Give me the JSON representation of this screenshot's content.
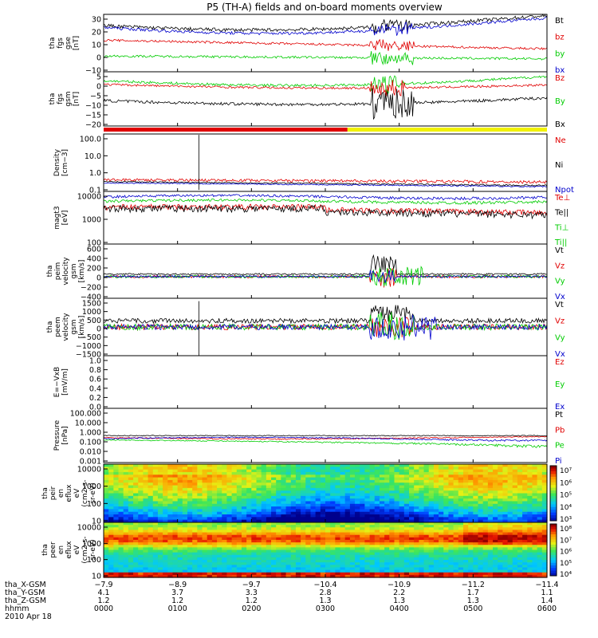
{
  "title": "P5 (TH-A) fields and on-board moments overview",
  "colors": {
    "black": "#000000",
    "red": "#e00000",
    "green": "#00cc00",
    "blue": "#0000cc",
    "yellow": "#f2f200"
  },
  "chart_data": {
    "type": "line",
    "x_ticks": [
      "0000",
      "0100",
      "0200",
      "0300",
      "0400",
      "0500",
      "0600"
    ],
    "panels": [
      {
        "id": "fgs-gse",
        "ylabel": [
          "tha",
          "fgs",
          "gse",
          "[nT]"
        ],
        "ylim": [
          -10,
          30
        ],
        "yticks": [
          "30",
          "20",
          "10",
          "0",
          "−10"
        ],
        "legend": [
          {
            "text": "Bt",
            "color": "black"
          },
          {
            "text": "bz",
            "color": "red"
          },
          {
            "text": "by",
            "color": "green"
          },
          {
            "text": "bx",
            "color": "blue"
          }
        ]
      },
      {
        "id": "fgs-gsm",
        "ylabel": [
          "tha",
          "fgs",
          "gsm",
          "[nT]"
        ],
        "ylim": [
          -22,
          8
        ],
        "yticks": [
          "5",
          "0",
          "−5",
          "−10",
          "−15",
          "−20"
        ],
        "legend": [
          {
            "text": "Bz",
            "color": "red"
          },
          {
            "text": "By",
            "color": "green"
          },
          {
            "text": "Bx",
            "color": "black"
          }
        ]
      },
      {
        "id": "density",
        "ylabel": [
          "Density",
          "[cm−3]"
        ],
        "ylim": [
          0.1,
          100
        ],
        "yticks": [
          "100.0",
          "10.0",
          "1.0",
          "0.1"
        ],
        "legend": [
          {
            "text": "Ne",
            "color": "red"
          },
          {
            "text": "Ni",
            "color": "black"
          },
          {
            "text": "Npot",
            "color": "blue"
          }
        ]
      },
      {
        "id": "temperature",
        "ylabel": [
          "magt3",
          "[eV]"
        ],
        "ylim": [
          100,
          10000
        ],
        "yticks": [
          "10000",
          "1000",
          "100"
        ],
        "legend": [
          {
            "text": "Te⊥",
            "color": "red"
          },
          {
            "text": "Te||",
            "color": "black"
          },
          {
            "text": "Ti⊥",
            "color": "green"
          },
          {
            "text": "Ti||",
            "color": "green"
          }
        ]
      },
      {
        "id": "peim-velocity",
        "ylabel": [
          "tha",
          "peim",
          "velocity",
          "gsm",
          "[km/s]"
        ],
        "ylim": [
          -400,
          600
        ],
        "yticks": [
          "600",
          "400",
          "200",
          "0",
          "−200",
          "−400"
        ],
        "legend": [
          {
            "text": "Vt",
            "color": "black"
          },
          {
            "text": "Vz",
            "color": "red"
          },
          {
            "text": "Vy",
            "color": "green"
          },
          {
            "text": "Vx",
            "color": "blue"
          }
        ]
      },
      {
        "id": "peem-velocity",
        "ylabel": [
          "tha",
          "peem",
          "velocity",
          "gsm",
          "[km/s]"
        ],
        "ylim": [
          -1500,
          1500
        ],
        "yticks": [
          "1500",
          "1000",
          "500",
          "0",
          "−500",
          "−1000",
          "−1500"
        ],
        "legend": [
          {
            "text": "Vt",
            "color": "black"
          },
          {
            "text": "Vz",
            "color": "red"
          },
          {
            "text": "Vy",
            "color": "green"
          },
          {
            "text": "Vx",
            "color": "blue"
          }
        ]
      },
      {
        "id": "efield",
        "ylabel": [
          "E=−VxB",
          "[mV/m]"
        ],
        "ylim": [
          0,
          1
        ],
        "yticks": [
          "1.0",
          "0.8",
          "0.6",
          "0.4",
          "0.2",
          "0.0"
        ],
        "legend": [
          {
            "text": "Ez",
            "color": "red"
          },
          {
            "text": "Ey",
            "color": "green"
          },
          {
            "text": "Ex",
            "color": "blue"
          }
        ]
      },
      {
        "id": "pressure",
        "ylabel": [
          "Pressure",
          "[nPa]"
        ],
        "ylim": [
          0.001,
          100
        ],
        "yticks": [
          "100.000",
          "10.000",
          "1.000",
          "0.100",
          "0.010",
          "0.001"
        ],
        "legend": [
          {
            "text": "Pt",
            "color": "black"
          },
          {
            "text": "Pb",
            "color": "red"
          },
          {
            "text": "Pe",
            "color": "green"
          },
          {
            "text": "Pi",
            "color": "blue"
          }
        ]
      },
      {
        "id": "peir-spec",
        "ylabel": [
          "tha",
          "peir",
          "en",
          "eflux",
          "eV",
          "(cm2-s-",
          "sr-eV)"
        ],
        "ylim": [
          10,
          10000
        ],
        "yticks": [
          "10000",
          "1000",
          "100",
          "10"
        ],
        "colorbar": [
          "10⁷",
          "10⁶",
          "10⁵",
          "10⁴",
          "10³"
        ]
      },
      {
        "id": "peer-spec",
        "ylabel": [
          "tha",
          "peer",
          "en",
          "eflux",
          "eV",
          "(cm2-s-",
          "sr-eV)"
        ],
        "ylim": [
          10,
          10000
        ],
        "yticks": [
          "10000",
          "1000",
          "100",
          "10"
        ],
        "colorbar": [
          "10⁸",
          "10⁷",
          "10⁶",
          "10⁵",
          "10⁴"
        ]
      }
    ],
    "orbit_table": {
      "labels": [
        "tha_X-GSM",
        "tha_Y-GSM",
        "tha_Z-GSM",
        "hhmm",
        "2010 Apr 18"
      ],
      "columns": [
        [
          "−7.9",
          "4.1",
          "1.2",
          "0000"
        ],
        [
          "−8.9",
          "3.7",
          "1.2",
          "0100"
        ],
        [
          "−9.7",
          "3.3",
          "1.2",
          "0200"
        ],
        [
          "−10.4",
          "2.8",
          "1.3",
          "0300"
        ],
        [
          "−10.9",
          "2.2",
          "1.3",
          "0400"
        ],
        [
          "−11.2",
          "1.7",
          "1.3",
          "0500"
        ],
        [
          "−11.4",
          "1.1",
          "1.4",
          "0600"
        ]
      ]
    }
  }
}
